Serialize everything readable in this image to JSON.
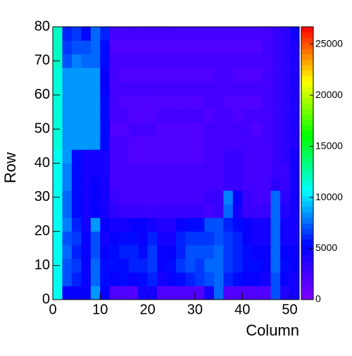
{
  "chart_data": {
    "type": "heatmap",
    "xlabel": "Column",
    "ylabel": "Row",
    "xlim": [
      0,
      52
    ],
    "ylim": [
      0,
      80
    ],
    "zlim": [
      0,
      26700
    ],
    "xticks": [
      0,
      10,
      20,
      30,
      40,
      50
    ],
    "yticks": [
      0,
      10,
      20,
      30,
      40,
      50,
      60,
      70,
      80
    ],
    "zticks": [
      0,
      5000,
      10000,
      15000,
      20000,
      25000
    ],
    "colormap": [
      "#8000ff",
      "#0000ff",
      "#00ffff",
      "#00ff00",
      "#ffff00",
      "#ff0000"
    ],
    "xbins": [
      0,
      2,
      4,
      6,
      8,
      10,
      12,
      14,
      16,
      18,
      20,
      22,
      24,
      26,
      28,
      30,
      32,
      34,
      36,
      38,
      40,
      42,
      44,
      46,
      48,
      50,
      52
    ],
    "ybins": [
      0,
      4,
      8,
      12,
      16,
      20,
      24,
      28,
      32,
      36,
      40,
      44,
      48,
      52,
      56,
      60,
      64,
      68,
      72,
      76,
      80
    ],
    "z": [
      [
        11000,
        5000,
        5000,
        5000,
        8500,
        5000,
        2000,
        2000,
        2000,
        4500,
        4500,
        2000,
        2000,
        2000,
        2000,
        2000,
        4500,
        7500,
        2000,
        2000,
        2000,
        2000,
        2000,
        7000,
        4000,
        4500
      ],
      [
        11000,
        7000,
        6000,
        5000,
        7500,
        5500,
        5000,
        5500,
        5000,
        5500,
        6000,
        4500,
        5000,
        5500,
        6000,
        6500,
        7000,
        7500,
        6000,
        5500,
        5000,
        5000,
        4500,
        7000,
        5000,
        4500
      ],
      [
        11000,
        7000,
        6500,
        5000,
        7500,
        5500,
        5500,
        5500,
        6000,
        6000,
        6500,
        5000,
        5500,
        6500,
        7000,
        6500,
        7500,
        7500,
        6500,
        6000,
        5500,
        5500,
        5000,
        7500,
        5500,
        5000
      ],
      [
        11000,
        7500,
        6000,
        5000,
        7000,
        5000,
        5500,
        6000,
        6000,
        5500,
        6500,
        5000,
        5000,
        6000,
        7000,
        7000,
        7000,
        7500,
        6500,
        6000,
        5500,
        5000,
        5000,
        7500,
        5000,
        5000
      ],
      [
        11000,
        7000,
        6500,
        5000,
        7000,
        4500,
        5000,
        5500,
        5500,
        5000,
        6000,
        4500,
        4500,
        6000,
        6500,
        6500,
        6500,
        7000,
        6500,
        6000,
        5000,
        4500,
        4500,
        7500,
        4500,
        4500
      ],
      [
        11000,
        8000,
        6000,
        4500,
        8500,
        5000,
        4500,
        4500,
        5000,
        5000,
        4500,
        4000,
        4000,
        5000,
        5500,
        5500,
        7000,
        7000,
        6000,
        5500,
        5000,
        4500,
        4500,
        7500,
        4500,
        4500
      ],
      [
        11000,
        7500,
        5500,
        4500,
        5000,
        4500,
        3500,
        3000,
        3000,
        3000,
        3000,
        3000,
        3000,
        3000,
        3000,
        3000,
        2500,
        3000,
        7500,
        4500,
        3000,
        3000,
        3000,
        7500,
        4000,
        4500
      ],
      [
        11000,
        7500,
        5500,
        4500,
        5000,
        4500,
        3000,
        2500,
        2500,
        2500,
        2500,
        2500,
        2500,
        2500,
        2500,
        2500,
        3000,
        3000,
        8000,
        5000,
        3000,
        2500,
        2500,
        7500,
        3500,
        4500
      ],
      [
        11000,
        8000,
        5500,
        4500,
        5000,
        4500,
        2500,
        2500,
        2500,
        2500,
        2500,
        2500,
        2500,
        2500,
        2500,
        2500,
        2500,
        2500,
        3000,
        3000,
        2500,
        2500,
        2500,
        3500,
        3000,
        4500
      ],
      [
        11000,
        8000,
        5500,
        4500,
        4500,
        4500,
        2500,
        2500,
        2500,
        2500,
        2500,
        2500,
        2500,
        2500,
        2500,
        2500,
        2500,
        2500,
        3000,
        3000,
        2500,
        2500,
        2500,
        3000,
        3000,
        4500
      ],
      [
        11000,
        8500,
        5500,
        4500,
        4500,
        4500,
        2500,
        2500,
        2000,
        2000,
        2000,
        2000,
        2000,
        2000,
        2000,
        2000,
        2500,
        2500,
        3000,
        3000,
        2500,
        2500,
        2500,
        3000,
        3500,
        4500
      ],
      [
        11500,
        8500,
        8500,
        8500,
        8500,
        5500,
        2500,
        2500,
        2000,
        2000,
        2000,
        2000,
        2000,
        2000,
        2000,
        2000,
        2500,
        2500,
        2500,
        2500,
        2500,
        2500,
        2500,
        3000,
        3500,
        4000
      ],
      [
        11500,
        8500,
        8500,
        8500,
        8500,
        5500,
        2000,
        2000,
        2500,
        2500,
        2500,
        2000,
        2000,
        2000,
        2000,
        2000,
        2500,
        2500,
        2500,
        2500,
        2500,
        2000,
        2500,
        3000,
        3500,
        4000
      ],
      [
        11500,
        8500,
        8500,
        8500,
        8500,
        5500,
        2500,
        2500,
        2000,
        2000,
        2000,
        2500,
        2500,
        2500,
        2500,
        2500,
        2000,
        2500,
        2500,
        2000,
        2500,
        2500,
        2500,
        3000,
        3500,
        4000
      ],
      [
        11500,
        8500,
        8500,
        8500,
        8500,
        5500,
        2500,
        2000,
        2000,
        2000,
        2000,
        2000,
        2000,
        2000,
        2000,
        2000,
        2500,
        2500,
        2000,
        2000,
        2000,
        2000,
        2500,
        3000,
        3500,
        4000
      ],
      [
        11500,
        8500,
        8500,
        8500,
        8500,
        5000,
        2500,
        2500,
        2500,
        2500,
        2500,
        2500,
        2500,
        2500,
        2500,
        2500,
        2500,
        2500,
        2500,
        2500,
        2500,
        2500,
        2500,
        3000,
        3500,
        4000
      ],
      [
        11500,
        8500,
        8500,
        8500,
        8500,
        5000,
        2500,
        2000,
        2000,
        2000,
        2000,
        2000,
        2000,
        2000,
        2000,
        2000,
        2000,
        2500,
        2500,
        2000,
        2000,
        2000,
        2500,
        3000,
        3500,
        4000
      ],
      [
        12000,
        7000,
        8000,
        7500,
        7500,
        5500,
        2500,
        2500,
        2500,
        2500,
        2500,
        2500,
        2500,
        2500,
        2500,
        2500,
        2500,
        2500,
        2500,
        2500,
        2500,
        2500,
        2500,
        3000,
        3500,
        4000
      ],
      [
        12000,
        6500,
        7000,
        7000,
        7500,
        5500,
        2000,
        2000,
        2000,
        2000,
        2000,
        2000,
        2000,
        2000,
        2000,
        2000,
        2000,
        2000,
        2000,
        2000,
        2000,
        2000,
        2500,
        3000,
        3500,
        4000
      ],
      [
        12000,
        6000,
        6500,
        5500,
        7500,
        6000,
        2500,
        2500,
        2500,
        2500,
        2500,
        2500,
        2500,
        2500,
        2500,
        2500,
        2500,
        2500,
        2500,
        2500,
        2500,
        2500,
        2500,
        3000,
        3500,
        4500
      ]
    ]
  }
}
